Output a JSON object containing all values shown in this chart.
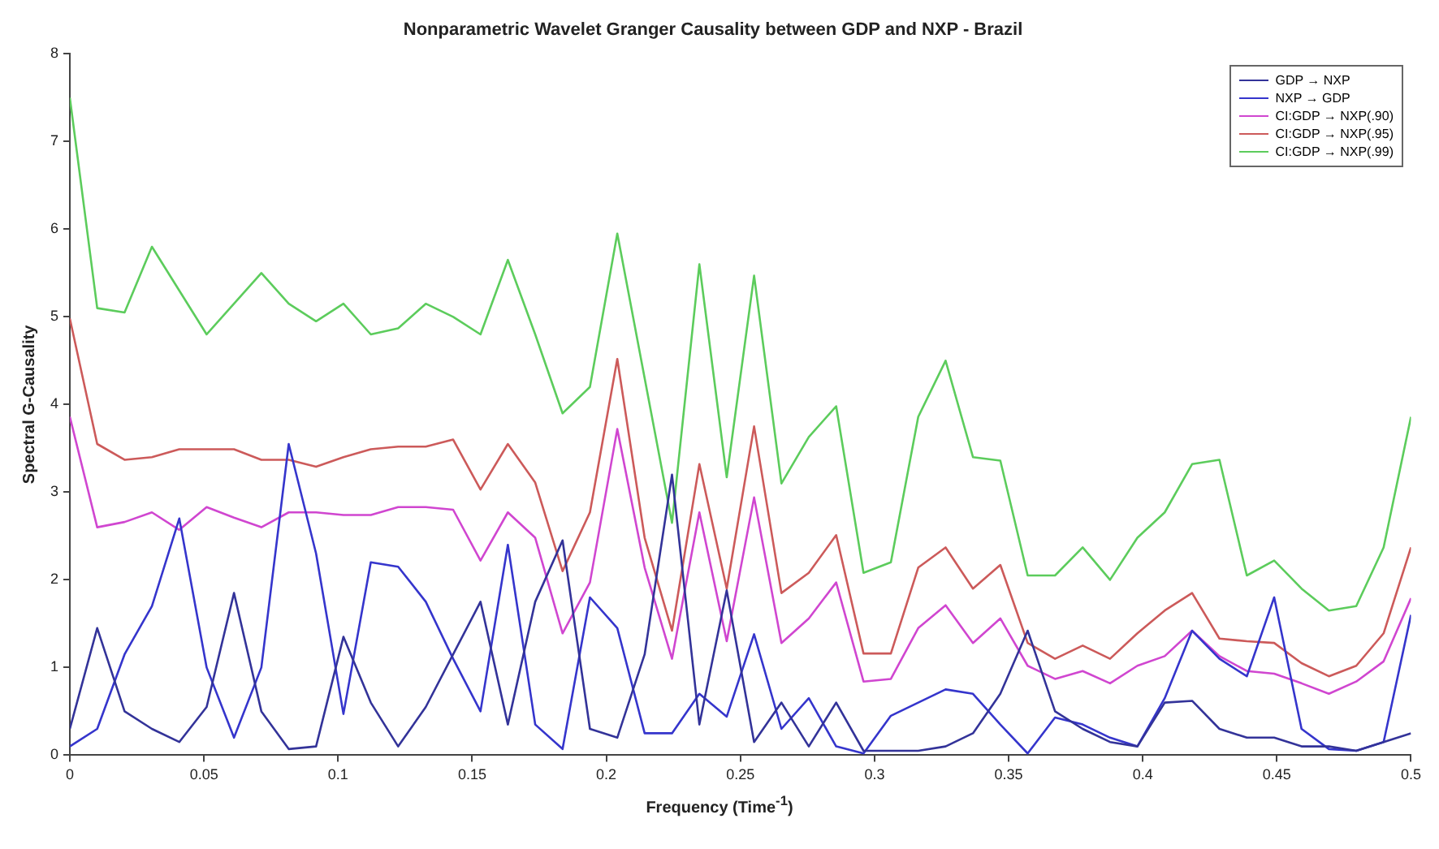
{
  "chart_data": {
    "type": "line",
    "title": "Nonparametric Wavelet Granger Causality between GDP and NXP - Brazil",
    "xlabel": "Frequency (Time$^{-1}$)",
    "ylabel": "Spectral G-Causality",
    "x": [
      0,
      0.0102,
      0.0204,
      0.0306,
      0.0408,
      0.051,
      0.0612,
      0.0714,
      0.0816,
      0.0918,
      0.102,
      0.1122,
      0.1224,
      0.1327,
      0.1429,
      0.1531,
      0.1633,
      0.1735,
      0.1837,
      0.1939,
      0.2041,
      0.2143,
      0.2245,
      0.2347,
      0.2449,
      0.2551,
      0.2653,
      0.2755,
      0.2857,
      0.2959,
      0.3061,
      0.3163,
      0.3265,
      0.3367,
      0.3469,
      0.3571,
      0.3673,
      0.3776,
      0.3878,
      0.398,
      0.4082,
      0.4184,
      0.4286,
      0.4388,
      0.449,
      0.4592,
      0.4694,
      0.4796,
      0.4898,
      0.5
    ],
    "series": [
      {
        "name": "GDP → NXP",
        "color": "#333399",
        "values": [
          0.3,
          1.45,
          0.5,
          0.3,
          0.15,
          0.55,
          1.85,
          0.5,
          0.07,
          0.1,
          1.35,
          0.6,
          0.1,
          0.55,
          1.15,
          1.75,
          0.35,
          1.75,
          2.45,
          0.3,
          0.2,
          1.15,
          3.2,
          0.35,
          1.88,
          0.15,
          0.6,
          0.1,
          0.6,
          0.05,
          0.05,
          0.05,
          0.1,
          0.25,
          0.7,
          1.42,
          0.5,
          0.3,
          0.15,
          0.1,
          0.6,
          0.62,
          0.3,
          0.2,
          0.2,
          0.1,
          0.1,
          0.05,
          0.15,
          0.25
        ]
      },
      {
        "name": "NXP → GDP",
        "color": "#3535cc",
        "values": [
          0.1,
          0.3,
          1.15,
          1.7,
          2.7,
          1.0,
          0.2,
          1.0,
          3.55,
          2.3,
          0.47,
          2.2,
          2.15,
          1.75,
          1.1,
          0.5,
          2.4,
          0.35,
          0.07,
          1.8,
          1.45,
          0.25,
          0.25,
          0.7,
          0.44,
          1.38,
          0.3,
          0.65,
          0.1,
          0.02,
          0.45,
          0.6,
          0.75,
          0.7,
          0.35,
          0.02,
          0.43,
          0.35,
          0.2,
          0.1,
          0.65,
          1.42,
          1.1,
          0.9,
          1.8,
          0.3,
          0.07,
          0.05,
          0.15,
          1.6
        ]
      },
      {
        "name": "CI:GDP → NXP(.90)",
        "color": "#d046d0",
        "values": [
          3.86,
          2.6,
          2.66,
          2.77,
          2.57,
          2.83,
          2.71,
          2.6,
          2.77,
          2.77,
          2.74,
          2.74,
          2.83,
          2.83,
          2.8,
          2.22,
          2.77,
          2.48,
          1.39,
          1.97,
          3.72,
          2.14,
          1.1,
          2.77,
          1.3,
          2.94,
          1.28,
          1.56,
          1.97,
          0.84,
          0.87,
          1.45,
          1.71,
          1.28,
          1.56,
          1.02,
          0.87,
          0.96,
          0.82,
          1.02,
          1.13,
          1.42,
          1.13,
          0.96,
          0.93,
          0.82,
          0.7,
          0.84,
          1.07,
          1.79
        ]
      },
      {
        "name": "CI:GDP → NXP(.95)",
        "color": "#cc5a5a",
        "values": [
          4.98,
          3.55,
          3.37,
          3.4,
          3.49,
          3.49,
          3.49,
          3.37,
          3.37,
          3.29,
          3.4,
          3.49,
          3.52,
          3.52,
          3.6,
          3.03,
          3.55,
          3.11,
          2.1,
          2.77,
          4.52,
          2.48,
          1.42,
          3.32,
          1.9,
          3.75,
          1.85,
          2.08,
          2.51,
          1.16,
          1.16,
          2.14,
          2.37,
          1.9,
          2.17,
          1.28,
          1.1,
          1.25,
          1.1,
          1.39,
          1.65,
          1.85,
          1.33,
          1.3,
          1.28,
          1.05,
          0.9,
          1.02,
          1.39,
          2.37
        ]
      },
      {
        "name": "CI:GDP → NXP(.99)",
        "color": "#5ccc5c",
        "values": [
          7.5,
          5.1,
          5.05,
          5.8,
          5.3,
          4.8,
          5.15,
          5.5,
          5.15,
          4.95,
          5.15,
          4.8,
          4.87,
          5.15,
          5.0,
          4.8,
          5.65,
          4.8,
          3.9,
          4.2,
          5.95,
          4.3,
          2.65,
          5.6,
          3.17,
          5.47,
          3.1,
          3.63,
          3.98,
          2.08,
          2.2,
          3.86,
          4.5,
          3.4,
          3.36,
          2.05,
          2.05,
          2.37,
          2.0,
          2.48,
          2.77,
          3.32,
          3.37,
          2.05,
          2.22,
          1.9,
          1.65,
          1.7,
          2.37,
          3.86
        ]
      }
    ],
    "xlim": [
      0,
      0.5
    ],
    "xticks": [
      0,
      0.05,
      0.1,
      0.15,
      0.2,
      0.25,
      0.3,
      0.35,
      0.4,
      0.45,
      0.5
    ],
    "ylim": [
      0,
      8
    ],
    "yticks": [
      0,
      1,
      2,
      3,
      4,
      5,
      6,
      7,
      8
    ],
    "grid": false,
    "legend": "top right",
    "marker": "none",
    "line_style": "solid"
  }
}
